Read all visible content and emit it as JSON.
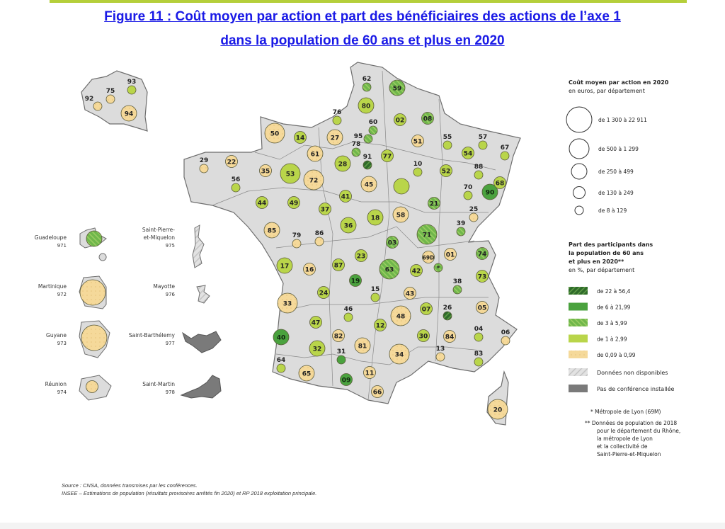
{
  "title": {
    "line1": "Figure 11 : Coût moyen par action et part des bénéficiaires des actions de l’axe 1",
    "line2": "dans la population de 60 ans et plus en 2020"
  },
  "legend_cost": {
    "title": "Coût moyen par action en 2020",
    "subtitle": "en euros, par département",
    "classes": [
      "de 1 300 à 22 911",
      "de 500 à 1 299",
      "de 250 à 499",
      "de 130 à 249",
      "de 8 à 129"
    ]
  },
  "legend_share": {
    "title_lines": [
      "Part des participants dans",
      "la population de 60 ans",
      "et plus en 2020**"
    ],
    "subtitle": "en %, par département",
    "classes": [
      "de 22 à 56,4",
      "de 6 à 21,99",
      "de 3 à 5,99",
      "de 1 à 2,99",
      "de 0,09 à 0,99"
    ],
    "colors": [
      "#2e6b2a",
      "#4aa23e",
      "#7cbf4e",
      "#b9d54a",
      "#f5d99a"
    ],
    "na": "Données non disponibles",
    "no_conf": "Pas de conférence installée",
    "note1": "* Métropole de Lyon (69M)",
    "note2_lines": [
      "** Données de population de 2018",
      "pour le département du Rhône,",
      "la métropole de Lyon",
      "et la collectivité de",
      "Saint-Pierre-et-Miquelon"
    ]
  },
  "departments": [
    {
      "code": "62",
      "share_class": 3,
      "cost_class": 5
    },
    {
      "code": "59",
      "share_class": 3,
      "cost_class": 3
    },
    {
      "code": "80",
      "share_class": 2,
      "cost_class": 3
    },
    {
      "code": "76",
      "share_class": 2,
      "cost_class": 5
    },
    {
      "code": "60",
      "share_class": 3,
      "cost_class": 5
    },
    {
      "code": "02",
      "share_class": 2,
      "cost_class": 4
    },
    {
      "code": "08",
      "share_class": 3,
      "cost_class": 4
    },
    {
      "code": "50",
      "share_class": 1,
      "cost_class": 2
    },
    {
      "code": "14",
      "share_class": 2,
      "cost_class": 4
    },
    {
      "code": "27",
      "share_class": 1,
      "cost_class": 3
    },
    {
      "code": "95",
      "share_class": 3,
      "cost_class": 5
    },
    {
      "code": "78",
      "share_class": 3,
      "cost_class": 5
    },
    {
      "code": "91",
      "share_class": 5,
      "cost_class": 5
    },
    {
      "code": "77",
      "share_class": 2,
      "cost_class": 4
    },
    {
      "code": "51",
      "share_class": 1,
      "cost_class": 4
    },
    {
      "code": "55",
      "share_class": 2,
      "cost_class": 5
    },
    {
      "code": "57",
      "share_class": 2,
      "cost_class": 5
    },
    {
      "code": "54",
      "share_class": 2,
      "cost_class": 4
    },
    {
      "code": "67",
      "share_class": 2,
      "cost_class": 5
    },
    {
      "code": "29",
      "share_class": 1,
      "cost_class": 5
    },
    {
      "code": "22",
      "share_class": 1,
      "cost_class": 4
    },
    {
      "code": "61",
      "share_class": 1,
      "cost_class": 3
    },
    {
      "code": "35",
      "share_class": 1,
      "cost_class": 4
    },
    {
      "code": "53",
      "share_class": 2,
      "cost_class": 2
    },
    {
      "code": "72",
      "share_class": 1,
      "cost_class": 2
    },
    {
      "code": "28",
      "share_class": 2,
      "cost_class": 3
    },
    {
      "code": "10",
      "share_class": 2,
      "cost_class": 5
    },
    {
      "code": "52",
      "share_class": 2,
      "cost_class": 4
    },
    {
      "code": "88",
      "share_class": 2,
      "cost_class": 5
    },
    {
      "code": "56",
      "share_class": 2,
      "cost_class": 5
    },
    {
      "code": "45",
      "share_class": 1,
      "cost_class": 3
    },
    {
      "code": "",
      "share_class": 2,
      "cost_class": 3
    },
    {
      "code": "70",
      "share_class": 2,
      "cost_class": 5
    },
    {
      "code": "90",
      "share_class": 4,
      "cost_class": 3
    },
    {
      "code": "68",
      "share_class": 2,
      "cost_class": 4
    },
    {
      "code": "41",
      "share_class": 2,
      "cost_class": 4
    },
    {
      "code": "44",
      "share_class": 2,
      "cost_class": 4
    },
    {
      "code": "49",
      "share_class": 2,
      "cost_class": 4
    },
    {
      "code": "37",
      "share_class": 2,
      "cost_class": 4
    },
    {
      "code": "21",
      "share_class": 3,
      "cost_class": 4
    },
    {
      "code": "25",
      "share_class": 1,
      "cost_class": 5
    },
    {
      "code": "18",
      "share_class": 2,
      "cost_class": 3
    },
    {
      "code": "58",
      "share_class": 1,
      "cost_class": 3
    },
    {
      "code": "36",
      "share_class": 2,
      "cost_class": 3
    },
    {
      "code": "85",
      "share_class": 1,
      "cost_class": 3
    },
    {
      "code": "39",
      "share_class": 3,
      "cost_class": 5
    },
    {
      "code": "79",
      "share_class": 1,
      "cost_class": 5
    },
    {
      "code": "86",
      "share_class": 1,
      "cost_class": 5
    },
    {
      "code": "71",
      "share_class": 3,
      "cost_class": 2
    },
    {
      "code": "03",
      "share_class": 3,
      "cost_class": 4
    },
    {
      "code": "23",
      "share_class": 2,
      "cost_class": 4
    },
    {
      "code": "69D",
      "share_class": 1,
      "cost_class": 4
    },
    {
      "code": "01",
      "share_class": 1,
      "cost_class": 4
    },
    {
      "code": "74",
      "share_class": 3,
      "cost_class": 4
    },
    {
      "code": "*",
      "share_class": 3,
      "cost_class": 5
    },
    {
      "code": "17",
      "share_class": 2,
      "cost_class": 3
    },
    {
      "code": "16",
      "share_class": 1,
      "cost_class": 4
    },
    {
      "code": "87",
      "share_class": 2,
      "cost_class": 4
    },
    {
      "code": "63",
      "share_class": 3,
      "cost_class": 2
    },
    {
      "code": "42",
      "share_class": 2,
      "cost_class": 4
    },
    {
      "code": "73",
      "share_class": 2,
      "cost_class": 4
    },
    {
      "code": "19",
      "share_class": 4,
      "cost_class": 4
    },
    {
      "code": "38",
      "share_class": 3,
      "cost_class": 5
    },
    {
      "code": "15",
      "share_class": 2,
      "cost_class": 5
    },
    {
      "code": "43",
      "share_class": 1,
      "cost_class": 4
    },
    {
      "code": "24",
      "share_class": 2,
      "cost_class": 4
    },
    {
      "code": "33",
      "share_class": 1,
      "cost_class": 2
    },
    {
      "code": "07",
      "share_class": 2,
      "cost_class": 4
    },
    {
      "code": "26",
      "share_class": 5,
      "cost_class": 5
    },
    {
      "code": "05",
      "share_class": 1,
      "cost_class": 4
    },
    {
      "code": "46",
      "share_class": 2,
      "cost_class": 5
    },
    {
      "code": "48",
      "share_class": 1,
      "cost_class": 2
    },
    {
      "code": "47",
      "share_class": 2,
      "cost_class": 4
    },
    {
      "code": "04",
      "share_class": 2,
      "cost_class": 5
    },
    {
      "code": "06",
      "share_class": 1,
      "cost_class": 5
    },
    {
      "code": "12",
      "share_class": 2,
      "cost_class": 4
    },
    {
      "code": "82",
      "share_class": 1,
      "cost_class": 4
    },
    {
      "code": "30",
      "share_class": 2,
      "cost_class": 4
    },
    {
      "code": "84",
      "share_class": 1,
      "cost_class": 4
    },
    {
      "code": "40",
      "share_class": 4,
      "cost_class": 3
    },
    {
      "code": "81",
      "share_class": 1,
      "cost_class": 3
    },
    {
      "code": "32",
      "share_class": 2,
      "cost_class": 3
    },
    {
      "code": "34",
      "share_class": 1,
      "cost_class": 2
    },
    {
      "code": "13",
      "share_class": 1,
      "cost_class": 5
    },
    {
      "code": "31",
      "share_class": 4,
      "cost_class": 5
    },
    {
      "code": "83",
      "share_class": 2,
      "cost_class": 5
    },
    {
      "code": "64",
      "share_class": 2,
      "cost_class": 5
    },
    {
      "code": "65",
      "share_class": 1,
      "cost_class": 3
    },
    {
      "code": "11",
      "share_class": 1,
      "cost_class": 4
    },
    {
      "code": "09",
      "share_class": 4,
      "cost_class": 4
    },
    {
      "code": "66",
      "share_class": 1,
      "cost_class": 4
    },
    {
      "code": "20",
      "share_class": 1,
      "cost_class": 2
    },
    {
      "code": "93",
      "share_class": 2,
      "cost_class": 5
    },
    {
      "code": "75",
      "share_class": 1,
      "cost_class": 5
    },
    {
      "code": "92",
      "share_class": 1,
      "cost_class": 5
    },
    {
      "code": "94",
      "share_class": 1,
      "cost_class": 3
    }
  ],
  "overseas": [
    {
      "name": "Guadeloupe",
      "code": "971",
      "share_class": 3,
      "cost_class": 3
    },
    {
      "name": "Martinique",
      "code": "972",
      "share_class": 1,
      "cost_class": 1
    },
    {
      "name": "Guyane",
      "code": "973",
      "share_class": 1,
      "cost_class": 1
    },
    {
      "name": "Réunion",
      "code": "974",
      "share_class": 1,
      "cost_class": 4
    },
    {
      "name_lines": [
        "Saint-Pierre-",
        "et-Miquelon"
      ],
      "code": "975",
      "status": "Données non disponibles"
    },
    {
      "name": "Mayotte",
      "code": "976",
      "status": "Données non disponibles"
    },
    {
      "name": "Saint-Barthélemy",
      "code": "977",
      "status": "Pas de conférence installée"
    },
    {
      "name": "Saint-Martin",
      "code": "978",
      "status": "Pas de conférence installée"
    }
  ],
  "source": {
    "line1": "Source : CNSA, données transmises par les conférences.",
    "line2": "INSEE – Estimations de population (résultats provisoires arrêtés fin 2020) et RP 2018 exploitation principale."
  }
}
